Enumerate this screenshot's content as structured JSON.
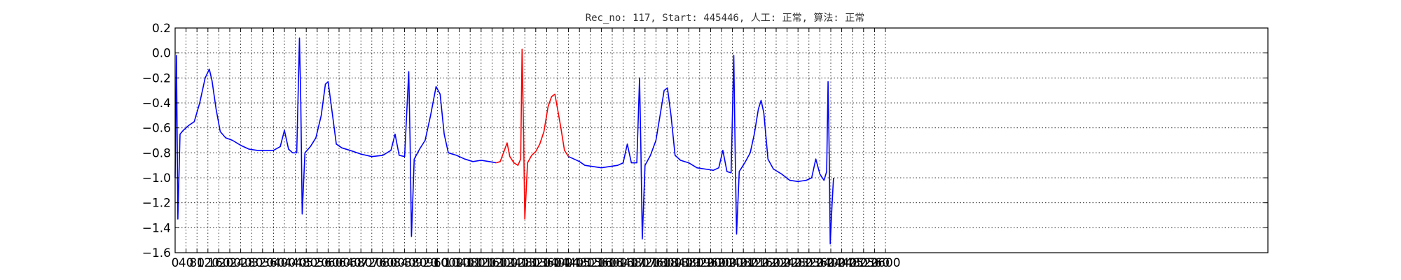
{
  "chart_data": {
    "type": "line",
    "title": "Rec_no: 117, Start: 445446, 人工: 正常, 算法: 正常",
    "xlabel": "",
    "ylabel": "",
    "xlim": [
      0,
      4000
    ],
    "ylim": [
      -1.6,
      0.2
    ],
    "grid": true,
    "x_tick_values": [
      0,
      40,
      80,
      120,
      160,
      200,
      240,
      280,
      320,
      360,
      400,
      440,
      480,
      520,
      560,
      600,
      640,
      680,
      720,
      760,
      800,
      840,
      880,
      920,
      960,
      1000,
      1040,
      1080,
      1120,
      1160,
      1200,
      1240,
      1280,
      1320,
      1360,
      1400,
      1440,
      1480,
      1520,
      1560,
      1600,
      1640,
      1680,
      1720,
      1760,
      1800,
      1840,
      1880,
      1920,
      1960,
      2000,
      2040,
      2080,
      2120,
      2160,
      2200,
      2240,
      2280,
      2320,
      2360,
      2400,
      2440,
      2480,
      2520,
      2560,
      2600
    ],
    "x_tick_labels": [
      "0",
      "40",
      "80",
      "120",
      "160",
      "200",
      "240",
      "280",
      "320",
      "360",
      "400",
      "440",
      "480",
      "520",
      "560",
      "600",
      "640",
      "680",
      "720",
      "760",
      "800",
      "840",
      "880",
      "920",
      "960",
      "1000",
      "1040",
      "1080",
      "1120",
      "1160",
      "1200",
      "1240",
      "1280",
      "1320",
      "1360",
      "1400",
      "1440",
      "1480",
      "1520",
      "1560",
      "1600",
      "1640",
      "1680",
      "1720",
      "1760",
      "1800",
      "1840",
      "1880",
      "1920",
      "1960",
      "2000",
      "2040",
      "2080",
      "2120",
      "2160",
      "2200",
      "2240",
      "2280",
      "2320",
      "2360",
      "2400",
      "2440",
      "2480",
      "2520",
      "2560",
      "2600"
    ],
    "y_ticks": [
      0.2,
      0.0,
      -0.2,
      -0.4,
      -0.6,
      -0.8,
      -1.0,
      -1.2,
      -1.4,
      -1.6
    ],
    "y_tick_labels": [
      "0.2",
      "0.0",
      "−0.2",
      "−0.4",
      "−0.6",
      "−0.8",
      "−1.0",
      "−1.2",
      "−1.4",
      "−1.6"
    ],
    "series": [
      {
        "color": "#0000ff",
        "points": [
          [
            0,
            -1.0
          ],
          [
            5,
            -0.02
          ],
          [
            10,
            -1.33
          ],
          [
            18,
            -0.65
          ],
          [
            30,
            -0.62
          ],
          [
            50,
            -0.58
          ],
          [
            70,
            -0.55
          ],
          [
            90,
            -0.4
          ],
          [
            110,
            -0.2
          ],
          [
            125,
            -0.13
          ],
          [
            135,
            -0.22
          ],
          [
            150,
            -0.45
          ],
          [
            165,
            -0.63
          ],
          [
            185,
            -0.68
          ],
          [
            210,
            -0.7
          ],
          [
            240,
            -0.74
          ],
          [
            270,
            -0.77
          ],
          [
            300,
            -0.78
          ],
          [
            330,
            -0.78
          ],
          [
            360,
            -0.78
          ],
          [
            385,
            -0.75
          ],
          [
            400,
            -0.62
          ],
          [
            415,
            -0.77
          ],
          [
            430,
            -0.8
          ],
          [
            445,
            -0.8
          ],
          [
            455,
            0.12
          ],
          [
            460,
            -0.4
          ],
          [
            465,
            -1.29
          ],
          [
            475,
            -0.8
          ],
          [
            495,
            -0.75
          ],
          [
            515,
            -0.68
          ],
          [
            535,
            -0.5
          ],
          [
            550,
            -0.25
          ],
          [
            560,
            -0.23
          ],
          [
            575,
            -0.48
          ],
          [
            590,
            -0.73
          ],
          [
            610,
            -0.76
          ],
          [
            640,
            -0.78
          ],
          [
            680,
            -0.81
          ],
          [
            720,
            -0.83
          ],
          [
            760,
            -0.82
          ],
          [
            790,
            -0.78
          ],
          [
            805,
            -0.65
          ],
          [
            820,
            -0.82
          ],
          [
            840,
            -0.83
          ],
          [
            855,
            -0.15
          ],
          [
            860,
            -0.7
          ],
          [
            865,
            -1.47
          ],
          [
            875,
            -0.85
          ],
          [
            895,
            -0.77
          ],
          [
            915,
            -0.7
          ],
          [
            935,
            -0.5
          ],
          [
            955,
            -0.27
          ],
          [
            970,
            -0.33
          ],
          [
            985,
            -0.65
          ],
          [
            1000,
            -0.8
          ],
          [
            1030,
            -0.82
          ],
          [
            1060,
            -0.85
          ],
          [
            1090,
            -0.87
          ],
          [
            1120,
            -0.86
          ],
          [
            1150,
            -0.87
          ],
          [
            1175,
            -0.88
          ]
        ]
      },
      {
        "color": "#ff0000",
        "points": [
          [
            1175,
            -0.88
          ],
          [
            1190,
            -0.87
          ],
          [
            1205,
            -0.78
          ],
          [
            1215,
            -0.72
          ],
          [
            1225,
            -0.83
          ],
          [
            1240,
            -0.88
          ],
          [
            1255,
            -0.9
          ],
          [
            1265,
            -0.85
          ],
          [
            1270,
            0.03
          ],
          [
            1275,
            -0.6
          ],
          [
            1280,
            -1.33
          ],
          [
            1290,
            -0.88
          ],
          [
            1305,
            -0.82
          ],
          [
            1320,
            -0.79
          ],
          [
            1335,
            -0.73
          ],
          [
            1350,
            -0.63
          ],
          [
            1365,
            -0.43
          ],
          [
            1378,
            -0.35
          ],
          [
            1390,
            -0.33
          ],
          [
            1400,
            -0.45
          ],
          [
            1412,
            -0.6
          ],
          [
            1425,
            -0.78
          ],
          [
            1440,
            -0.83
          ]
        ]
      },
      {
        "color": "#0000ff",
        "points": [
          [
            1440,
            -0.83
          ],
          [
            1460,
            -0.85
          ],
          [
            1480,
            -0.87
          ],
          [
            1500,
            -0.9
          ],
          [
            1530,
            -0.91
          ],
          [
            1560,
            -0.92
          ],
          [
            1590,
            -0.91
          ],
          [
            1620,
            -0.9
          ],
          [
            1640,
            -0.88
          ],
          [
            1655,
            -0.73
          ],
          [
            1670,
            -0.88
          ],
          [
            1690,
            -0.88
          ],
          [
            1700,
            -0.2
          ],
          [
            1705,
            -0.8
          ],
          [
            1710,
            -1.49
          ],
          [
            1720,
            -0.9
          ],
          [
            1740,
            -0.82
          ],
          [
            1760,
            -0.7
          ],
          [
            1775,
            -0.5
          ],
          [
            1790,
            -0.3
          ],
          [
            1802,
            -0.28
          ],
          [
            1815,
            -0.5
          ],
          [
            1830,
            -0.82
          ],
          [
            1850,
            -0.86
          ],
          [
            1880,
            -0.88
          ],
          [
            1910,
            -0.92
          ],
          [
            1940,
            -0.93
          ],
          [
            1970,
            -0.94
          ],
          [
            1990,
            -0.92
          ],
          [
            2005,
            -0.78
          ],
          [
            2020,
            -0.95
          ],
          [
            2035,
            -0.96
          ],
          [
            2045,
            -0.02
          ],
          [
            2050,
            -0.8
          ],
          [
            2055,
            -1.45
          ],
          [
            2065,
            -0.95
          ],
          [
            2085,
            -0.88
          ],
          [
            2105,
            -0.8
          ],
          [
            2120,
            -0.65
          ],
          [
            2135,
            -0.45
          ],
          [
            2145,
            -0.38
          ],
          [
            2155,
            -0.48
          ],
          [
            2170,
            -0.85
          ],
          [
            2190,
            -0.93
          ],
          [
            2220,
            -0.97
          ],
          [
            2250,
            -1.02
          ],
          [
            2280,
            -1.03
          ],
          [
            2310,
            -1.02
          ],
          [
            2330,
            -1.0
          ],
          [
            2345,
            -0.85
          ],
          [
            2360,
            -0.97
          ],
          [
            2375,
            -1.02
          ],
          [
            2385,
            -0.95
          ],
          [
            2390,
            -0.23
          ],
          [
            2395,
            -0.9
          ],
          [
            2398,
            -1.53
          ],
          [
            2405,
            -1.2
          ],
          [
            2410,
            -1.0
          ]
        ]
      }
    ]
  }
}
